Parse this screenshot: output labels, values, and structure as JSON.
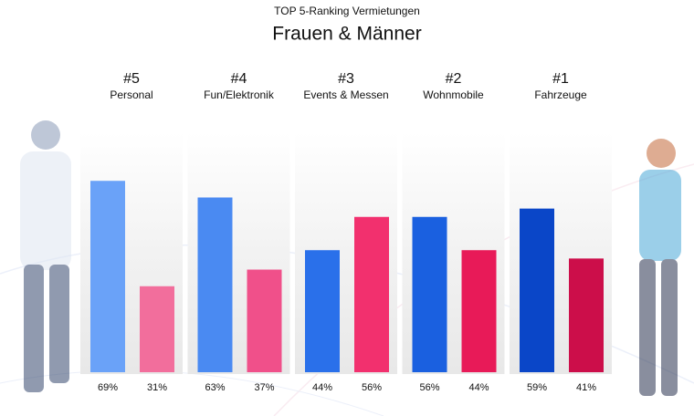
{
  "chart_data": {
    "type": "bar",
    "title": "Frauen & Männer",
    "subtitle": "TOP 5-Ranking Vermietungen",
    "ranks": [
      "#5",
      "#4",
      "#3",
      "#2",
      "#1"
    ],
    "categories": [
      "Personal",
      "Fun/Elektronik",
      "Events & Messen",
      "Wohnmobile",
      "Fahrzeuge"
    ],
    "series": [
      {
        "colors": [
          "#6aa2f8",
          "#4a8af2",
          "#2a70ea",
          "#1a60e0",
          "#0a46c8"
        ],
        "values": [
          69,
          63,
          44,
          56,
          59
        ],
        "value_labels": [
          "69%",
          "63%",
          "44%",
          "56%",
          "59%"
        ]
      },
      {
        "colors": [
          "#f26e9c",
          "#f0508a",
          "#f2306e",
          "#e81a58",
          "#cc0e4a"
        ],
        "values": [
          31,
          37,
          56,
          44,
          41
        ],
        "value_labels": [
          "31%",
          "37%",
          "56%",
          "44%",
          "41%"
        ]
      }
    ],
    "ylim": [
      0,
      100
    ]
  }
}
